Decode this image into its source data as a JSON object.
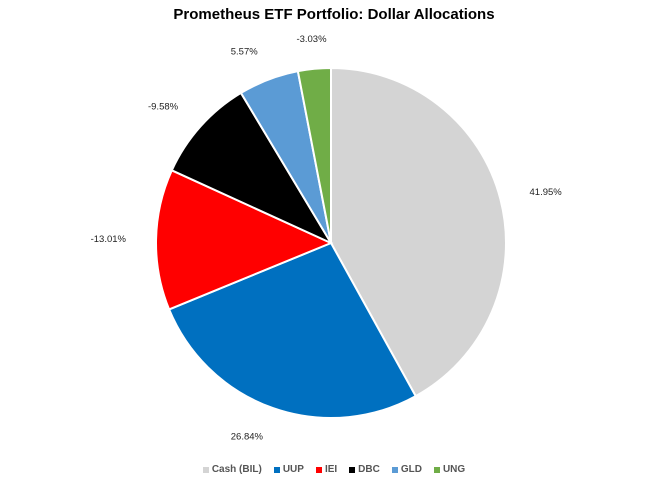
{
  "chart_data": {
    "type": "pie",
    "title": "Prometheus ETF Portfolio: Dollar Allocations",
    "legend_position": "bottom",
    "slices": [
      {
        "name": "Cash (BIL)",
        "value": 41.95,
        "label": "41.95%",
        "color": "#d4d4d4"
      },
      {
        "name": "UUP",
        "value": 26.84,
        "label": "26.84%",
        "color": "#0070c0"
      },
      {
        "name": "IEI",
        "value": 13.01,
        "label": "-13.01%",
        "color": "#ff0000"
      },
      {
        "name": "DBC",
        "value": 9.58,
        "label": "-9.58%",
        "color": "#000000"
      },
      {
        "name": "GLD",
        "value": 5.57,
        "label": "5.57%",
        "color": "#5b9bd5"
      },
      {
        "name": "UNG",
        "value": 3.03,
        "label": "-3.03%",
        "color": "#70ad47"
      }
    ]
  }
}
